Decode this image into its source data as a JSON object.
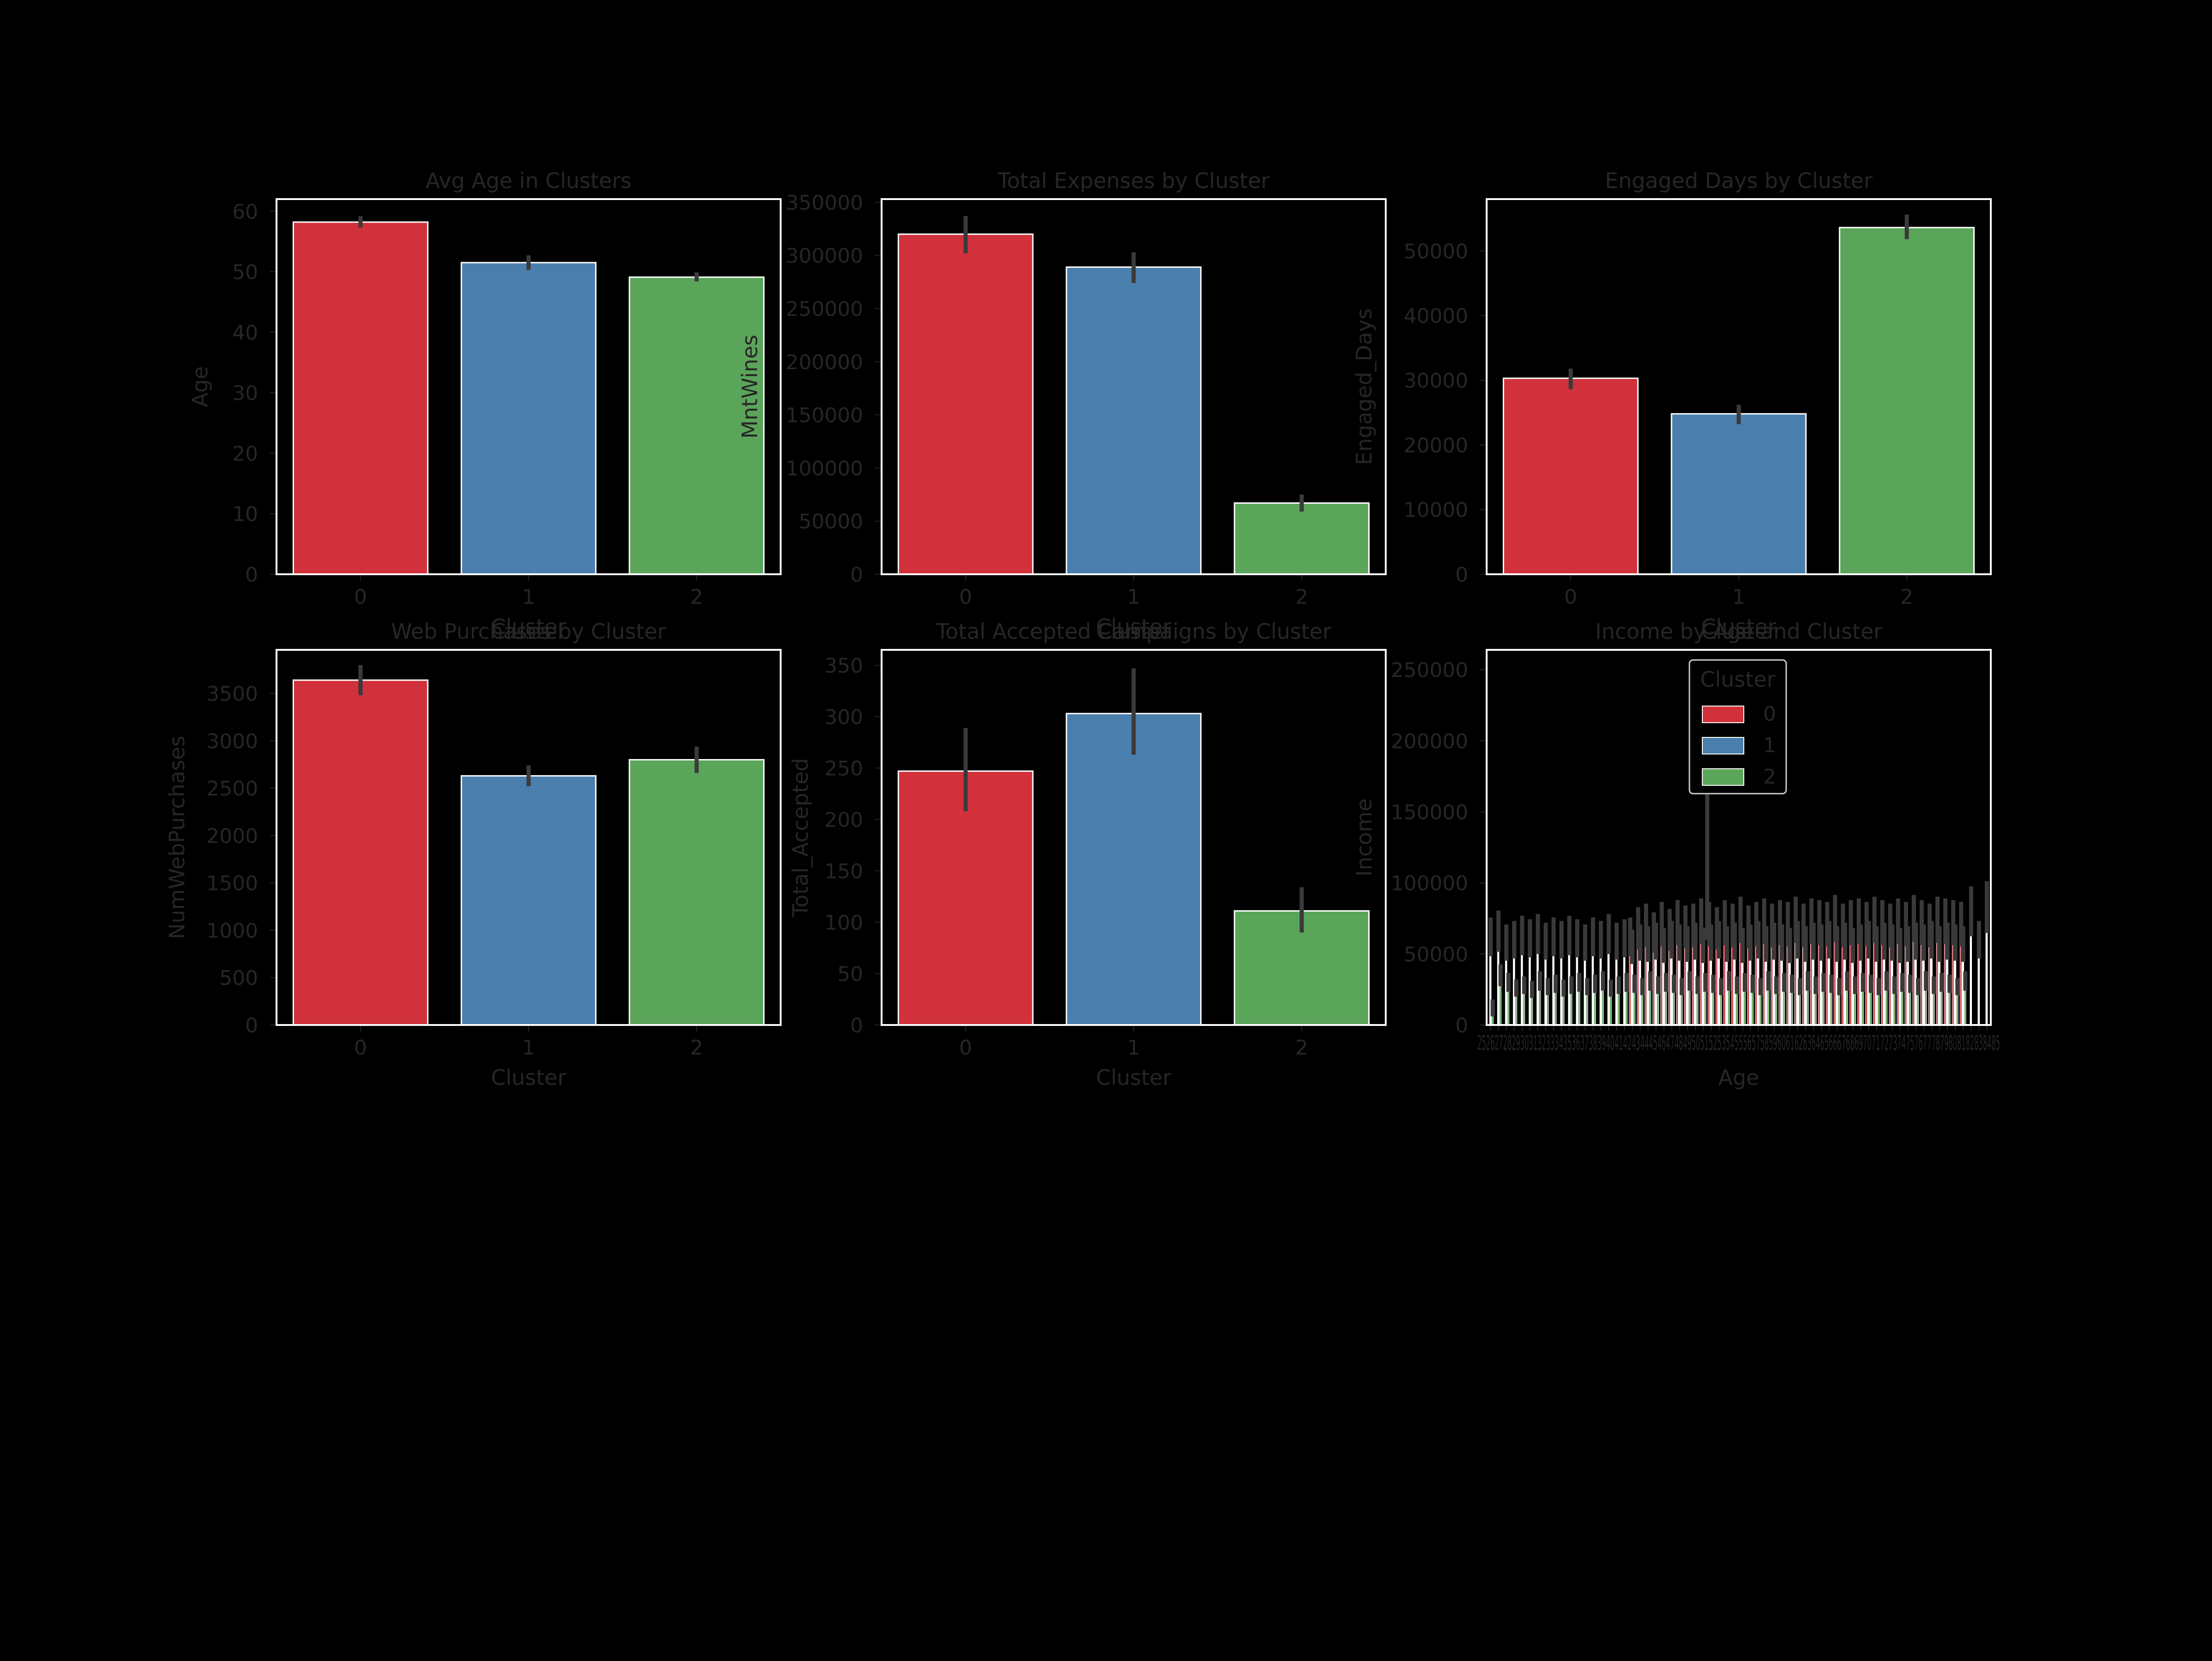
{
  "figure": {
    "background": "#000000",
    "text_color": "#262626",
    "frame_color": "#ffffff"
  },
  "palette": [
    "#d1313a",
    "#4a7fad",
    "#5ba55a"
  ],
  "chart_data": [
    {
      "type": "bar",
      "title": "Avg Age in Clusters",
      "xlabel": "",
      "ylabel": "Age",
      "categories": [
        "0",
        "1",
        "2"
      ],
      "values": [
        58.2,
        51.5,
        49.1
      ],
      "errors": [
        [
          57.3,
          59.2
        ],
        [
          50.3,
          52.7
        ],
        [
          48.4,
          49.9
        ]
      ],
      "ylim": [
        0,
        62
      ],
      "yticks": [
        0,
        10,
        20,
        30,
        40,
        50,
        60
      ],
      "ytick_labels": [
        "0",
        "10",
        "20",
        "30",
        "40",
        "50",
        "60"
      ],
      "grid": false
    },
    {
      "type": "bar",
      "title": "Total Expenses by Cluster",
      "xlabel": "",
      "ylabel": "MntWines",
      "categories": [
        "0",
        "1",
        "2"
      ],
      "values": [
        320000,
        289000,
        67000
      ],
      "errors": [
        [
          302000,
          337000
        ],
        [
          274000,
          303000
        ],
        [
          59000,
          75000
        ]
      ],
      "ylim": [
        0,
        353000
      ],
      "yticks": [
        0,
        50000,
        100000,
        150000,
        200000,
        250000,
        300000,
        350000
      ],
      "ytick_labels": [
        "0",
        "50000",
        "100000",
        "150000",
        "200000",
        "250000",
        "300000",
        "350000"
      ],
      "grid": false
    },
    {
      "type": "bar",
      "title": "Engaged Days by Cluster",
      "xlabel": "",
      "ylabel": "Engaged_Days",
      "categories": [
        "0",
        "1",
        "2"
      ],
      "values": [
        30300,
        24800,
        53600
      ],
      "errors": [
        [
          28600,
          31800
        ],
        [
          23200,
          26200
        ],
        [
          51800,
          55600
        ]
      ],
      "ylim": [
        0,
        58000
      ],
      "yticks": [
        0,
        10000,
        20000,
        30000,
        40000,
        50000
      ],
      "ytick_labels": [
        "0",
        "10000",
        "20000",
        "30000",
        "40000",
        "50000"
      ],
      "grid": false
    },
    {
      "type": "bar",
      "title": "Web Purchases by Cluster",
      "overlay_title": "Cluster",
      "xlabel": "Cluster",
      "ylabel": "NumWebPurchases",
      "categories": [
        "0",
        "1",
        "2"
      ],
      "values": [
        3640,
        2630,
        2800
      ],
      "errors": [
        [
          3480,
          3800
        ],
        [
          2520,
          2740
        ],
        [
          2660,
          2940
        ]
      ],
      "ylim": [
        0,
        3960
      ],
      "yticks": [
        0,
        500,
        1000,
        1500,
        2000,
        2500,
        3000,
        3500
      ],
      "ytick_labels": [
        "0",
        "500",
        "1000",
        "1500",
        "2000",
        "2500",
        "3000",
        "3500"
      ],
      "grid": false
    },
    {
      "type": "bar",
      "title": "Total Accepted Campaigns by Cluster",
      "overlay_title": "Cluster",
      "xlabel": "Cluster",
      "ylabel": "Total_Accepted",
      "categories": [
        "0",
        "1",
        "2"
      ],
      "values": [
        247,
        303,
        111
      ],
      "errors": [
        [
          208,
          289
        ],
        [
          263,
          347
        ],
        [
          90,
          134
        ]
      ],
      "ylim": [
        0,
        365
      ],
      "yticks": [
        0,
        50,
        100,
        150,
        200,
        250,
        300,
        350
      ],
      "ytick_labels": [
        "0",
        "50",
        "100",
        "150",
        "200",
        "250",
        "300",
        "350"
      ],
      "grid": false
    },
    {
      "type": "bar",
      "title": "Income by Age and Cluster",
      "overlay_title": "Cluster",
      "xlabel": "Age",
      "ylabel": "Income",
      "x_note": "Ages 25 to 128 on a categorical axis; tick labels overlap",
      "tick_labels_text": "25262728293031323334353637383940414243444546474849505152535455565758596061626364656667686970717273747576777879808182838485",
      "ytick_labels": [
        "0",
        "50000",
        "100000",
        "150000",
        "200000",
        "250000"
      ],
      "yticks": [
        0,
        50000,
        100000,
        150000,
        200000,
        250000
      ],
      "ylim": [
        0,
        264000
      ],
      "legend": {
        "title": "Cluster",
        "placement": "upper center",
        "entries": [
          "0",
          "1",
          "2"
        ]
      },
      "categories": [
        "25",
        "26",
        "27",
        "28",
        "29",
        "30",
        "31",
        "32",
        "33",
        "34",
        "35",
        "36",
        "37",
        "38",
        "39",
        "40",
        "41",
        "42",
        "43",
        "44",
        "45",
        "46",
        "47",
        "48",
        "49",
        "50",
        "51",
        "52",
        "53",
        "54",
        "55",
        "56",
        "57",
        "58",
        "59",
        "60",
        "61",
        "62",
        "63",
        "64",
        "65",
        "66",
        "67",
        "68",
        "69",
        "70",
        "71",
        "72",
        "73",
        "74",
        "75",
        "76",
        "77",
        "78",
        "79",
        "80",
        "81",
        "82",
        "83",
        "84",
        "85",
        "123",
        "124",
        "128"
      ],
      "series": [
        {
          "name": "0",
          "values": [
            null,
            null,
            null,
            null,
            null,
            null,
            null,
            null,
            null,
            null,
            null,
            null,
            null,
            null,
            null,
            null,
            null,
            null,
            62000,
            68000,
            70000,
            65000,
            71000,
            67000,
            72000,
            69000,
            70000,
            73000,
            71000,
            68000,
            72000,
            70000,
            74000,
            69000,
            71000,
            73000,
            70000,
            72000,
            71000,
            74000,
            70000,
            73000,
            72000,
            71000,
            75000,
            70000,
            72000,
            73000,
            71000,
            74000,
            72000,
            70000,
            73000,
            71000,
            75000,
            72000,
            70000,
            74000,
            73000,
            72000,
            71000,
            null,
            null,
            null
          ]
        },
        {
          "name": "1",
          "values": [
            62000,
            66000,
            58000,
            60000,
            63000,
            61000,
            64000,
            59000,
            62000,
            60000,
            63000,
            61000,
            58000,
            62000,
            60000,
            64000,
            59000,
            61000,
            55000,
            58000,
            57000,
            59000,
            56000,
            60000,
            58000,
            57000,
            59000,
            56000,
            58000,
            60000,
            57000,
            59000,
            56000,
            58000,
            60000,
            57000,
            59000,
            58000,
            56000,
            60000,
            57000,
            59000,
            58000,
            60000,
            57000,
            59000,
            56000,
            58000,
            60000,
            57000,
            59000,
            58000,
            56000,
            57000,
            59000,
            58000,
            60000,
            57000,
            59000,
            58000,
            57000,
            80000,
            60000,
            83000
          ]
        },
        {
          "name": "2",
          "values": [
            12000,
            35000,
            30000,
            26000,
            28000,
            25000,
            31000,
            27000,
            29000,
            26000,
            28000,
            30000,
            27000,
            29000,
            31000,
            26000,
            28000,
            30000,
            29000,
            27000,
            31000,
            28000,
            30000,
            29000,
            27000,
            31000,
            28000,
            30000,
            29000,
            27000,
            31000,
            28000,
            30000,
            29000,
            27000,
            31000,
            28000,
            30000,
            29000,
            27000,
            31000,
            28000,
            30000,
            29000,
            27000,
            31000,
            28000,
            30000,
            29000,
            27000,
            31000,
            28000,
            30000,
            29000,
            27000,
            31000,
            28000,
            30000,
            29000,
            27000,
            31000,
            null,
            null,
            null
          ]
        }
      ]
    }
  ]
}
